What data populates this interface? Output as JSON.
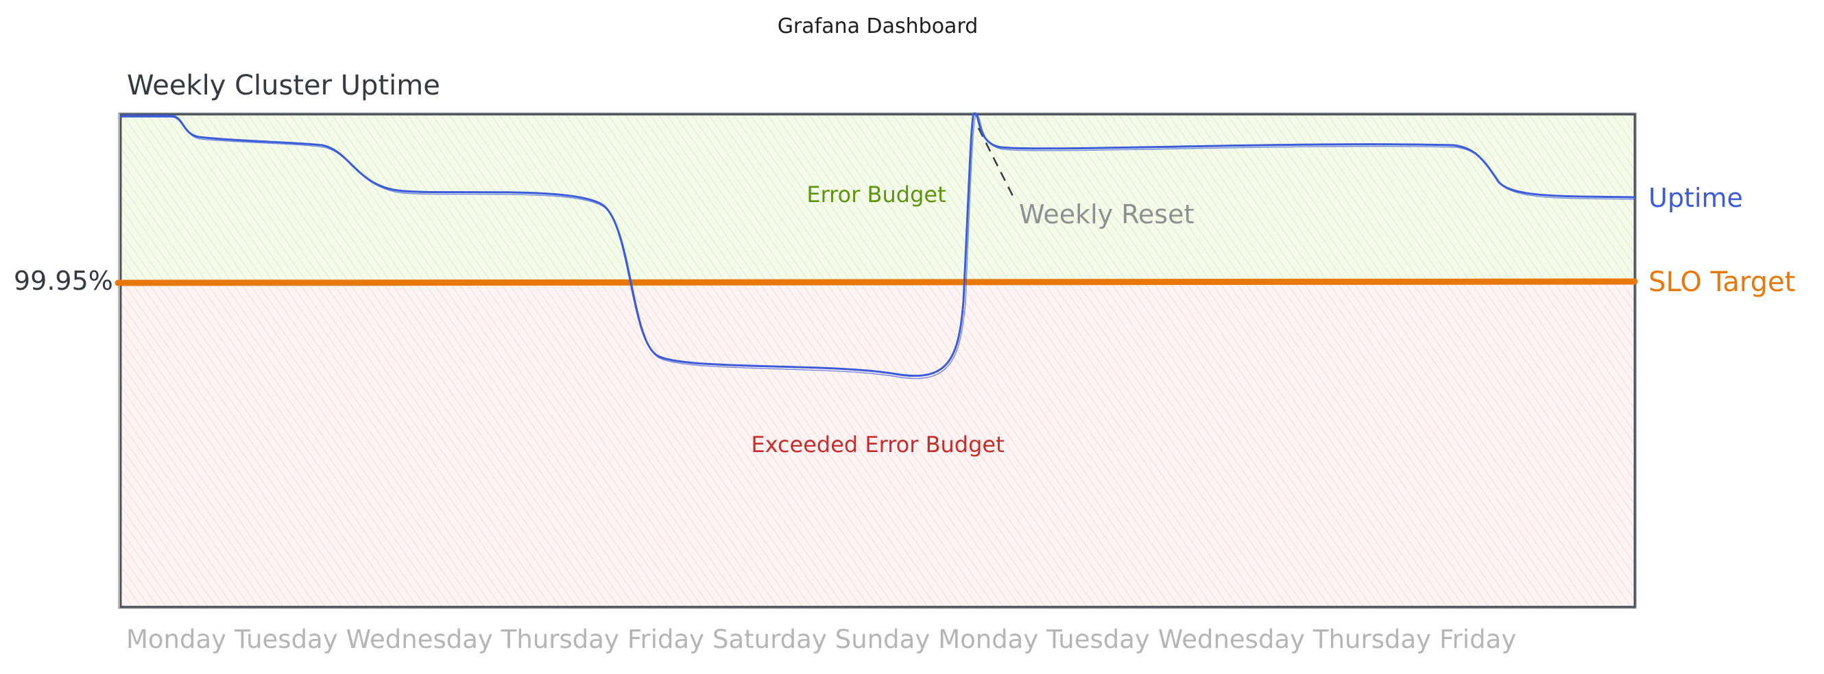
{
  "page": {
    "title": "Grafana Dashboard"
  },
  "chart_data": {
    "type": "line",
    "title": "Weekly Cluster Uptime",
    "x": [
      "Monday",
      "Tuesday",
      "Wednesday",
      "Thursday",
      "Friday",
      "Saturday",
      "Sunday",
      "Monday",
      "Tuesday",
      "Wednesday",
      "Thursday",
      "Friday"
    ],
    "y_tick_labels": [
      "99.95%"
    ],
    "series": [
      {
        "name": "Uptime",
        "color": "#3b5bdb",
        "trend": "starts near the top, steps down through Monday to Wednesday, drops below the SLO target on Friday and stays there until Sunday, then rises back up to the top at the weekly reset (Monday) and steps down slightly again on Thursday"
      },
      {
        "name": "SLO Target",
        "color": "#e8780c",
        "value_label": "99.95%",
        "kind": "horizontal reference line"
      }
    ],
    "regions": [
      {
        "label": "Error Budget",
        "color": "#5c940d",
        "fill": "#e7f5d4",
        "position": "above SLO Target"
      },
      {
        "label": "Exceeded Error Budget",
        "color": "#c92a2a",
        "fill": "#ffe0e0",
        "position": "below SLO Target"
      }
    ],
    "annotations": [
      {
        "label": "Weekly Reset",
        "color": "#909090",
        "at": "Monday (second week)"
      }
    ],
    "grid": false,
    "legend": "inline labels to the right of the plot"
  }
}
